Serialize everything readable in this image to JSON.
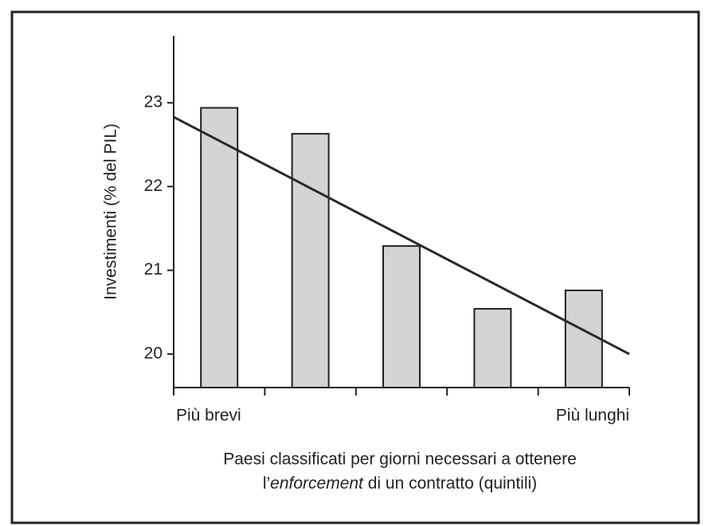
{
  "chart_data": {
    "type": "bar",
    "ylabel": "Investimenti (% del PIL)",
    "categories": [
      "Più brevi",
      null,
      null,
      null,
      "Più lunghi"
    ],
    "values": [
      22.94,
      22.63,
      21.29,
      20.54,
      20.76
    ],
    "color": "#d4d4d4",
    "ylim": [
      19.6,
      23.8
    ],
    "yticks": [
      20,
      21,
      22,
      23
    ],
    "trendline": {
      "values": [
        22.83,
        20.0
      ],
      "color": "#2a2a2a"
    },
    "xlabel": [
      "Paesi classificati per giorni necessari a ottenere",
      [
        "l’",
        "enforcement",
        " di un contratto (quintili)"
      ]
    ]
  }
}
